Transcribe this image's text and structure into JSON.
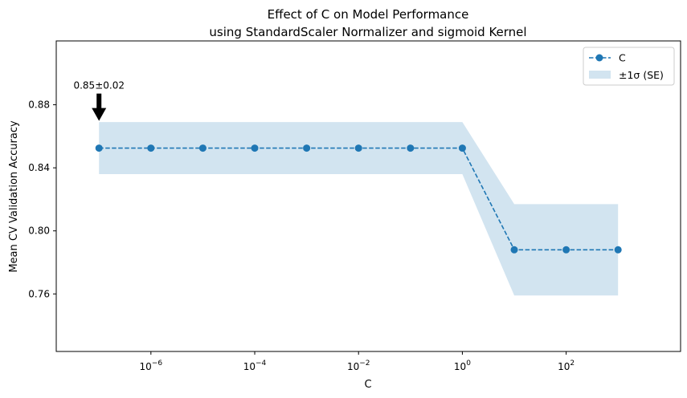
{
  "chart_data": {
    "type": "line",
    "title": "Effect of C on Model Performance",
    "subtitle": "using StandardScaler Normalizer and sigmoid Kernel",
    "xlabel": "C",
    "ylabel": "Mean CV Validation Accuracy",
    "x_scale": "log",
    "x_ticks": [
      {
        "value": 1e-06,
        "base": "10",
        "exp": "−6"
      },
      {
        "value": 0.0001,
        "base": "10",
        "exp": "−4"
      },
      {
        "value": 0.01,
        "base": "10",
        "exp": "−2"
      },
      {
        "value": 1,
        "base": "10",
        "exp": "0"
      },
      {
        "value": 100,
        "base": "10",
        "exp": "2"
      }
    ],
    "y_ticks": [
      "0.76",
      "0.80",
      "0.84",
      "0.88"
    ],
    "xlim": [
      1.5e-08,
      16000.0
    ],
    "ylim": [
      0.7235,
      0.9205
    ],
    "series": [
      {
        "name": "C",
        "color": "#1f77b4",
        "line_style": "dashed",
        "marker": "circle",
        "x": [
          1e-07,
          1e-06,
          1e-05,
          0.0001,
          0.001,
          0.01,
          0.1,
          1,
          10,
          100,
          1000
        ],
        "y": [
          0.8525,
          0.8525,
          0.8525,
          0.8525,
          0.8525,
          0.8525,
          0.8525,
          0.8525,
          0.788,
          0.788,
          0.788
        ]
      }
    ],
    "band": {
      "name": "±1σ (SE)",
      "color": "#1f77b4",
      "opacity": 0.2,
      "lower": [
        0.836,
        0.836,
        0.836,
        0.836,
        0.836,
        0.836,
        0.836,
        0.836,
        0.759,
        0.759,
        0.759
      ],
      "upper": [
        0.869,
        0.869,
        0.869,
        0.869,
        0.869,
        0.869,
        0.869,
        0.869,
        0.817,
        0.817,
        0.817
      ]
    },
    "annotation": {
      "text": "0.85±0.02",
      "x": 1e-07,
      "y": 0.8525
    },
    "legend": {
      "placement": "top-right",
      "entries": [
        "C",
        "±1σ (SE)"
      ]
    },
    "grid": false
  }
}
